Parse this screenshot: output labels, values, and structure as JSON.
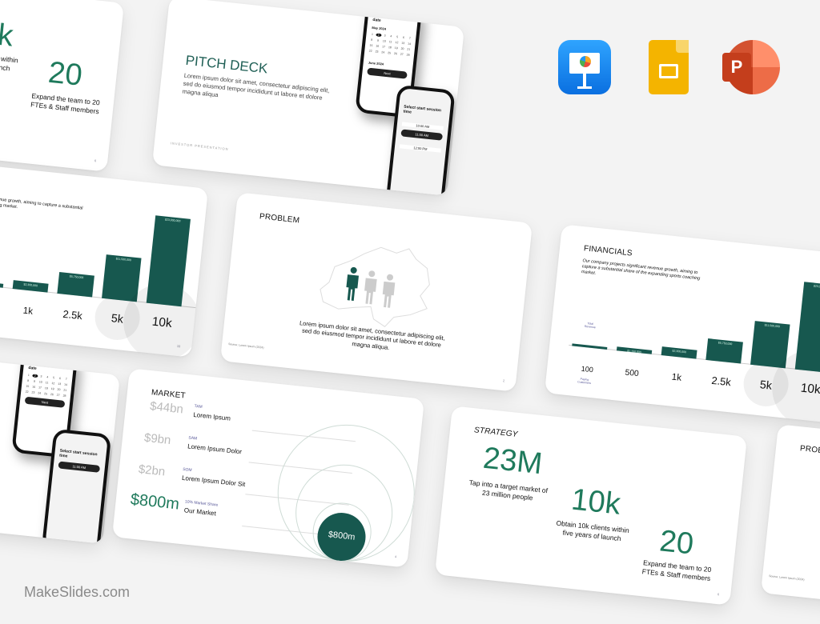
{
  "brand": {
    "logo": "MakeSlides.com"
  },
  "apps": [
    {
      "name": "Keynote",
      "icon": "keynote-icon",
      "color": "#1a8cf0"
    },
    {
      "name": "Google Slides",
      "icon": "google-slides-icon",
      "color": "#f4b400"
    },
    {
      "name": "PowerPoint",
      "icon": "powerpoint-icon",
      "color": "#d24726"
    }
  ],
  "colors": {
    "accent": "#17584f",
    "green_text": "#1f7a5c"
  },
  "pitch": {
    "title": "PITCH DECK",
    "body": "Lorem ipsum dolor sit amet, consectetur adipiscing elit, sed do eiusmod tempor incididunt ut labore et dolore magna aliqua",
    "footer": "INVESTOR PRESENTATION"
  },
  "phone": {
    "date_title": "Select start session date",
    "month1": "May 2024",
    "month2": "June 2024",
    "next": "Next",
    "time_title": "Select start session time",
    "times": [
      "10:00 AM",
      "11:00 AM",
      "12:00 PM"
    ]
  },
  "problem": {
    "title": "PROBLEM",
    "body": "Lorem ipsum dolor sit amet, consectetur adipiscing elit, sed do eiusmod tempor incididunt ut labore et dolore magna aliqua.",
    "source": "Source: Lorem Ipsum (2024)",
    "page": "2"
  },
  "financials": {
    "title": "FINANCIALS",
    "body": "Our company projects significant revenue growth, aiming to capture a substantial share of the expanding sports coaching market.",
    "revenue_label": "Total Revenue",
    "customers_label": "Paying Customers",
    "page": "10",
    "chart_data": {
      "type": "bar",
      "categories": [
        "100",
        "500",
        "1k",
        "2.5k",
        "5k",
        "10k"
      ],
      "values": [
        575000,
        1150000,
        2300000,
        5750000,
        11500000,
        23000000
      ],
      "labels": [
        "",
        "$1,150,000",
        "$2,300,000",
        "$5,750,000",
        "$11,500,000",
        "$23,000,000"
      ]
    }
  },
  "market": {
    "title": "MARKET",
    "rows": [
      {
        "value": "$44bn",
        "tag": "TAM",
        "label": "Lorem Ipsum"
      },
      {
        "value": "$9bn",
        "tag": "SAM",
        "label": "Lorem Ipsum Dolor"
      },
      {
        "value": "$2bn",
        "tag": "SOM",
        "label": "Lorem Ipsum Dolor Sit"
      },
      {
        "value": "$800m",
        "tag": "10% Market Share",
        "label": "Our Market"
      }
    ],
    "circle": "$800m",
    "page": "4"
  },
  "strategy": {
    "title": "STRATEGY",
    "items": [
      {
        "value": "23M",
        "text": "Tap into a target market of 23 million people"
      },
      {
        "value": "10k",
        "text": "Obtain 10k clients within five years of launch"
      },
      {
        "value": "20",
        "text": "Expand the team to 20 FTEs & Staff members"
      }
    ],
    "page": "6"
  }
}
